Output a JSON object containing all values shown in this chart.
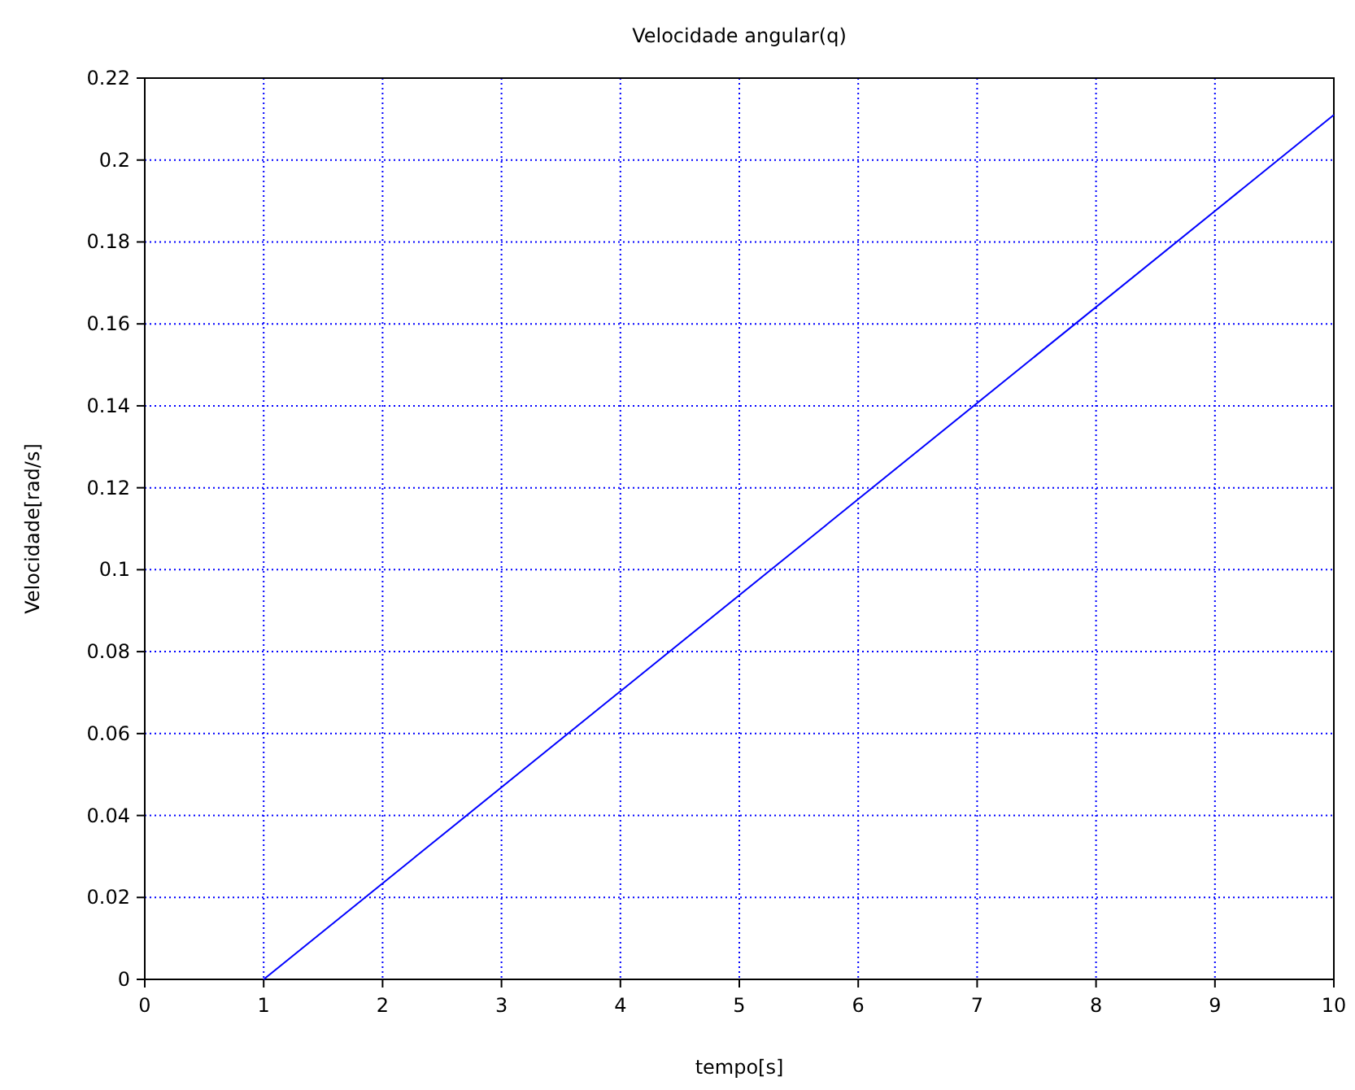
{
  "chart_data": {
    "type": "line",
    "title": "Velocidade angular(q)",
    "xlabel": "tempo[s]",
    "ylabel": "Velocidade[rad/s]",
    "x": [
      1,
      10
    ],
    "series": [
      {
        "color": "#0000ff",
        "values": [
          0,
          0.211
        ]
      }
    ],
    "xlim": [
      0,
      10
    ],
    "ylim": [
      0,
      0.22
    ],
    "xticks": [
      0,
      1,
      2,
      3,
      4,
      5,
      6,
      7,
      8,
      9,
      10
    ],
    "yticks": [
      0,
      0.02,
      0.04,
      0.06,
      0.08,
      0.1,
      0.12,
      0.14,
      0.16,
      0.18,
      0.2,
      0.22
    ],
    "grid": true,
    "line_style": "solid"
  }
}
